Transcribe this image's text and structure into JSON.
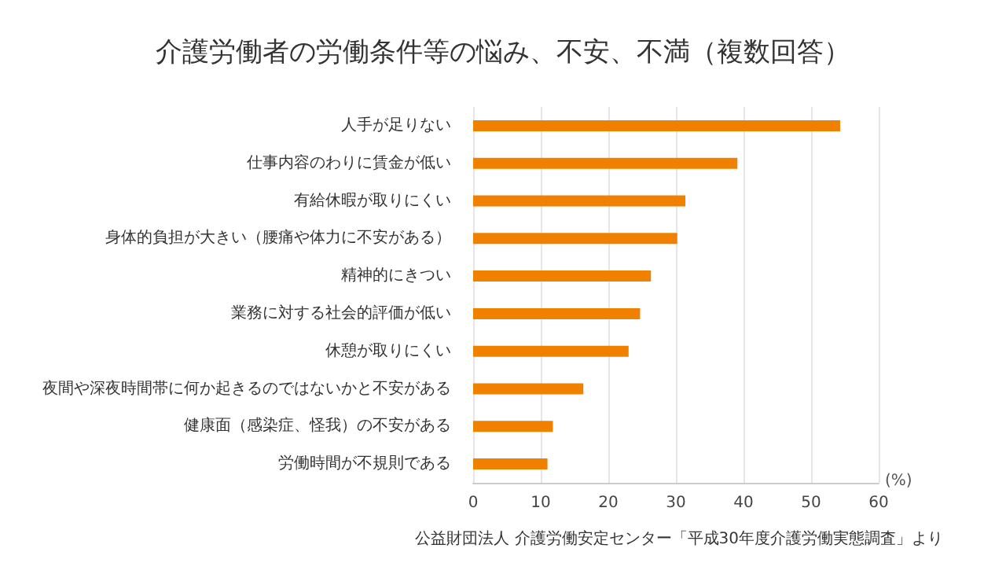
{
  "chart_data": {
    "type": "bar",
    "orientation": "horizontal",
    "title": "介護労働者の労働条件等の悩み、不安、不満（複数回答）",
    "categories": [
      "人手が足りない",
      "仕事内容のわりに賃金が低い",
      "有給休暇が取りにくい",
      "身体的負担が大きい（腰痛や体力に不安がある）",
      "精神的にきつい",
      "業務に対する社会的評価が低い",
      "休憩が取りにくい",
      "夜間や深夜時間帯に何か起きるのではないかと不安がある",
      "健康面（感染症、怪我）の不安がある",
      "労働時間が不規則である"
    ],
    "values": [
      54.3,
      39.1,
      31.4,
      30.2,
      26.3,
      24.7,
      23.0,
      16.3,
      11.8,
      11.0
    ],
    "color": "#f08000",
    "xlabel": "(%)",
    "xlim": [
      0,
      60
    ],
    "xticks": [
      0,
      10,
      20,
      30,
      40,
      50,
      60
    ],
    "grid": "x",
    "annotations": [
      "公益財団法人 介護労働安定センター「平成30年度介護労働実態調査」より"
    ]
  }
}
